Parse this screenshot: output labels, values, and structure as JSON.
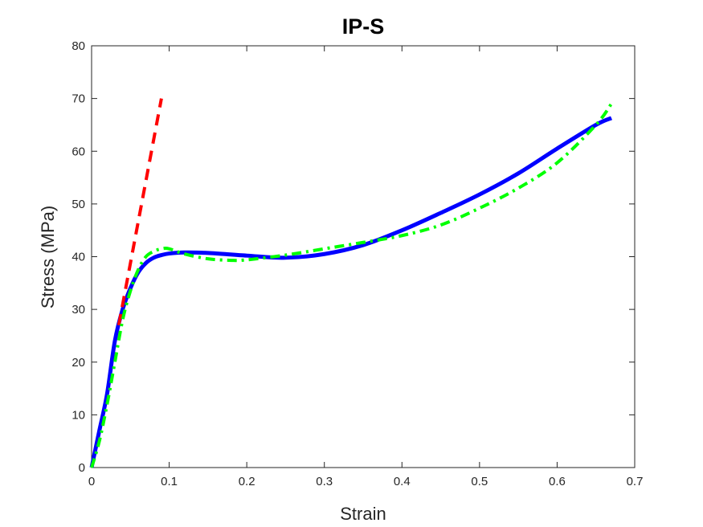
{
  "chart_data": {
    "type": "line",
    "title": "IP-S",
    "xlabel": "Strain",
    "ylabel": "Stress (MPa)",
    "xlim": [
      0,
      0.7
    ],
    "ylim": [
      0,
      80
    ],
    "xticks": [
      0,
      0.1,
      0.2,
      0.3,
      0.4,
      0.5,
      0.6,
      0.7
    ],
    "yticks": [
      0,
      10,
      20,
      30,
      40,
      50,
      60,
      70,
      80
    ],
    "xtick_labels": [
      "0",
      "0.1",
      "0.2",
      "0.3",
      "0.4",
      "0.5",
      "0.6",
      "0.7"
    ],
    "ytick_labels": [
      "0",
      "10",
      "20",
      "30",
      "40",
      "50",
      "60",
      "70",
      "80"
    ],
    "grid": false,
    "legend": "none",
    "series": [
      {
        "color": "#0000FF",
        "style": "solid",
        "x": [
          0,
          0.01,
          0.02,
          0.03,
          0.04,
          0.05,
          0.06,
          0.07,
          0.08,
          0.09,
          0.1,
          0.12,
          0.15,
          0.2,
          0.25,
          0.3,
          0.35,
          0.4,
          0.45,
          0.5,
          0.55,
          0.6,
          0.65,
          0.67
        ],
        "y": [
          0,
          7,
          14,
          24,
          30,
          34,
          37,
          38.8,
          39.8,
          40.3,
          40.6,
          40.8,
          40.7,
          40.2,
          39.8,
          40.5,
          42.2,
          45,
          48.3,
          51.8,
          55.8,
          60.5,
          65,
          66.3
        ]
      },
      {
        "color": "#00FF00",
        "style": "dashdot",
        "x": [
          0,
          0.01,
          0.02,
          0.03,
          0.04,
          0.05,
          0.06,
          0.07,
          0.08,
          0.09,
          0.1,
          0.12,
          0.15,
          0.18,
          0.2,
          0.25,
          0.3,
          0.35,
          0.4,
          0.45,
          0.5,
          0.55,
          0.6,
          0.65,
          0.67
        ],
        "y": [
          0,
          5,
          12,
          20,
          28,
          33.5,
          37.5,
          40,
          41,
          41.5,
          41.5,
          40.5,
          39.6,
          39.3,
          39.4,
          40.3,
          41.5,
          42.7,
          44,
          46,
          49.2,
          53,
          57.8,
          65,
          69
        ]
      },
      {
        "color": "#FF0000",
        "style": "dashed",
        "x": [
          0.035,
          0.09
        ],
        "y": [
          27,
          70
        ]
      }
    ]
  }
}
